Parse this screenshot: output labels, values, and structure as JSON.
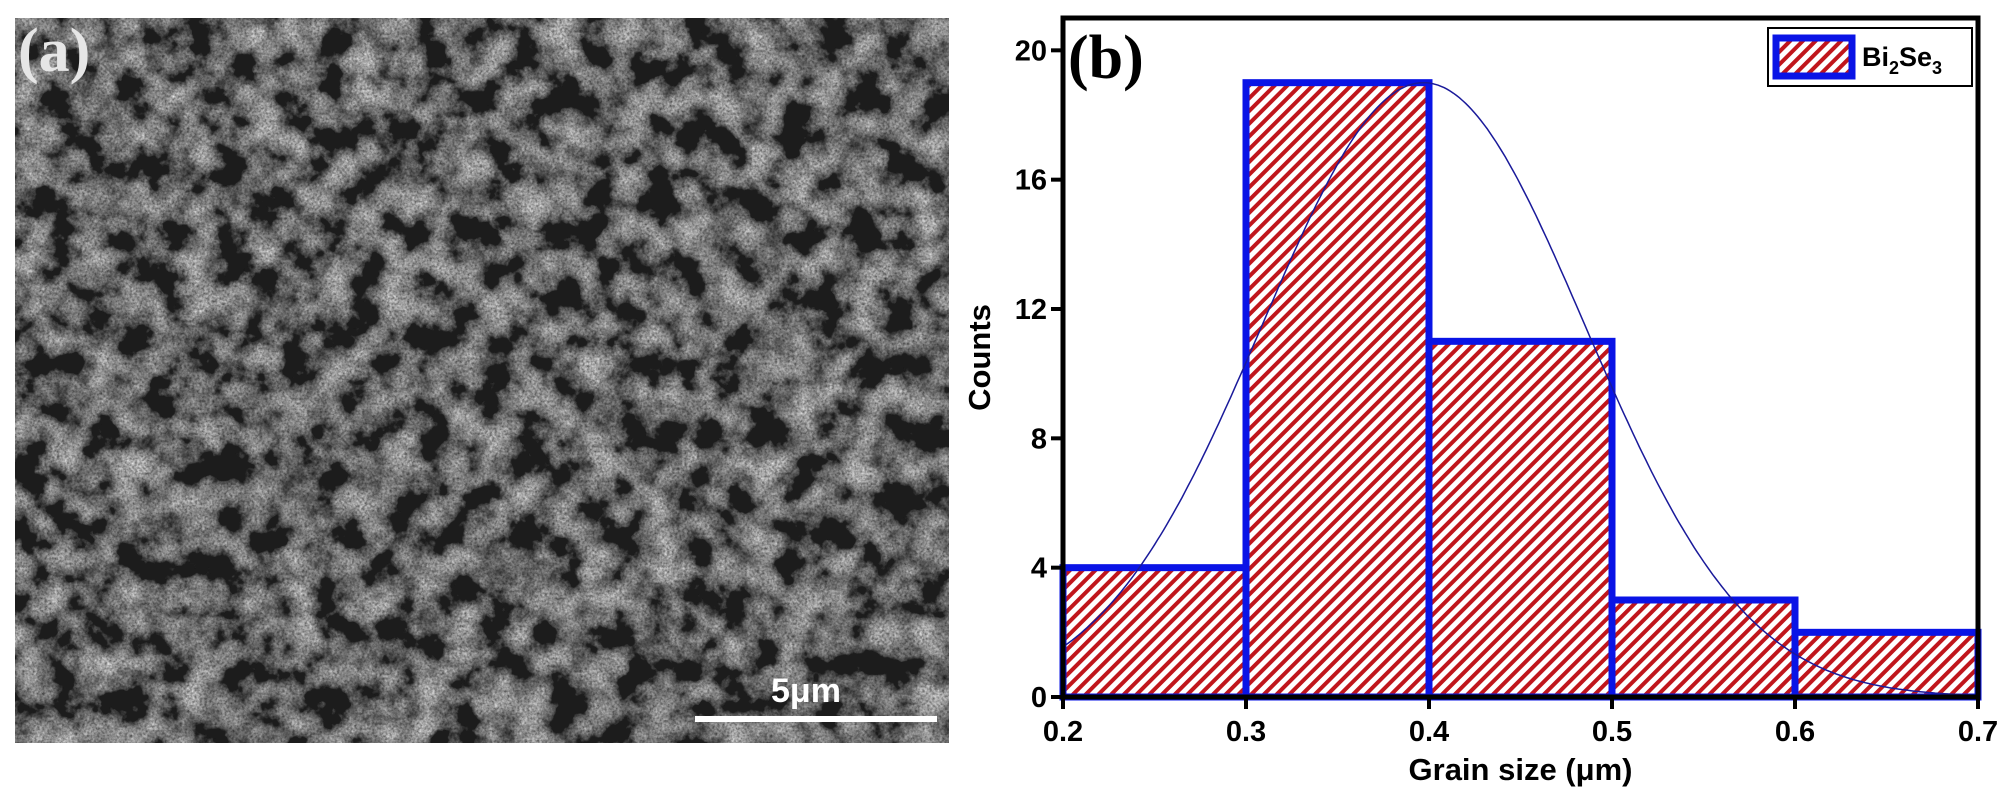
{
  "panel_a": {
    "label": "(a)",
    "scale_bar_text": "5μm"
  },
  "panel_b": {
    "label": "(b)"
  },
  "chart_data": {
    "type": "bar",
    "subtype": "histogram",
    "xlabel": "Grain size (μm)",
    "ylabel": "Counts",
    "xlim": [
      0.2,
      0.7
    ],
    "ylim": [
      0,
      21
    ],
    "x_ticks": [
      0.2,
      0.3,
      0.4,
      0.5,
      0.6,
      0.7
    ],
    "x_tick_labels": [
      "0.2",
      "0.3",
      "0.4",
      "0.5",
      "0.6",
      "0.7"
    ],
    "y_ticks": [
      0,
      4,
      8,
      12,
      16,
      20
    ],
    "y_tick_labels": [
      "0",
      "4",
      "8",
      "12",
      "16",
      "20"
    ],
    "bins": [
      {
        "start": 0.2,
        "end": 0.3,
        "count": 4
      },
      {
        "start": 0.3,
        "end": 0.4,
        "count": 19
      },
      {
        "start": 0.4,
        "end": 0.5,
        "count": 11
      },
      {
        "start": 0.5,
        "end": 0.6,
        "count": 3
      },
      {
        "start": 0.6,
        "end": 0.7,
        "count": 2
      }
    ],
    "fit_curve": {
      "type": "gaussian",
      "peak": 19,
      "center": 0.397,
      "sigma": 0.088
    },
    "legend": {
      "position": "top-right",
      "name_base": "Bi",
      "sub1": "2",
      "name_mid": "Se",
      "sub2": "3"
    },
    "colors": {
      "bar_edge": "#0a14e6",
      "hatch": "#c0161c",
      "fit": "#1a1a9a"
    },
    "grid": false
  }
}
